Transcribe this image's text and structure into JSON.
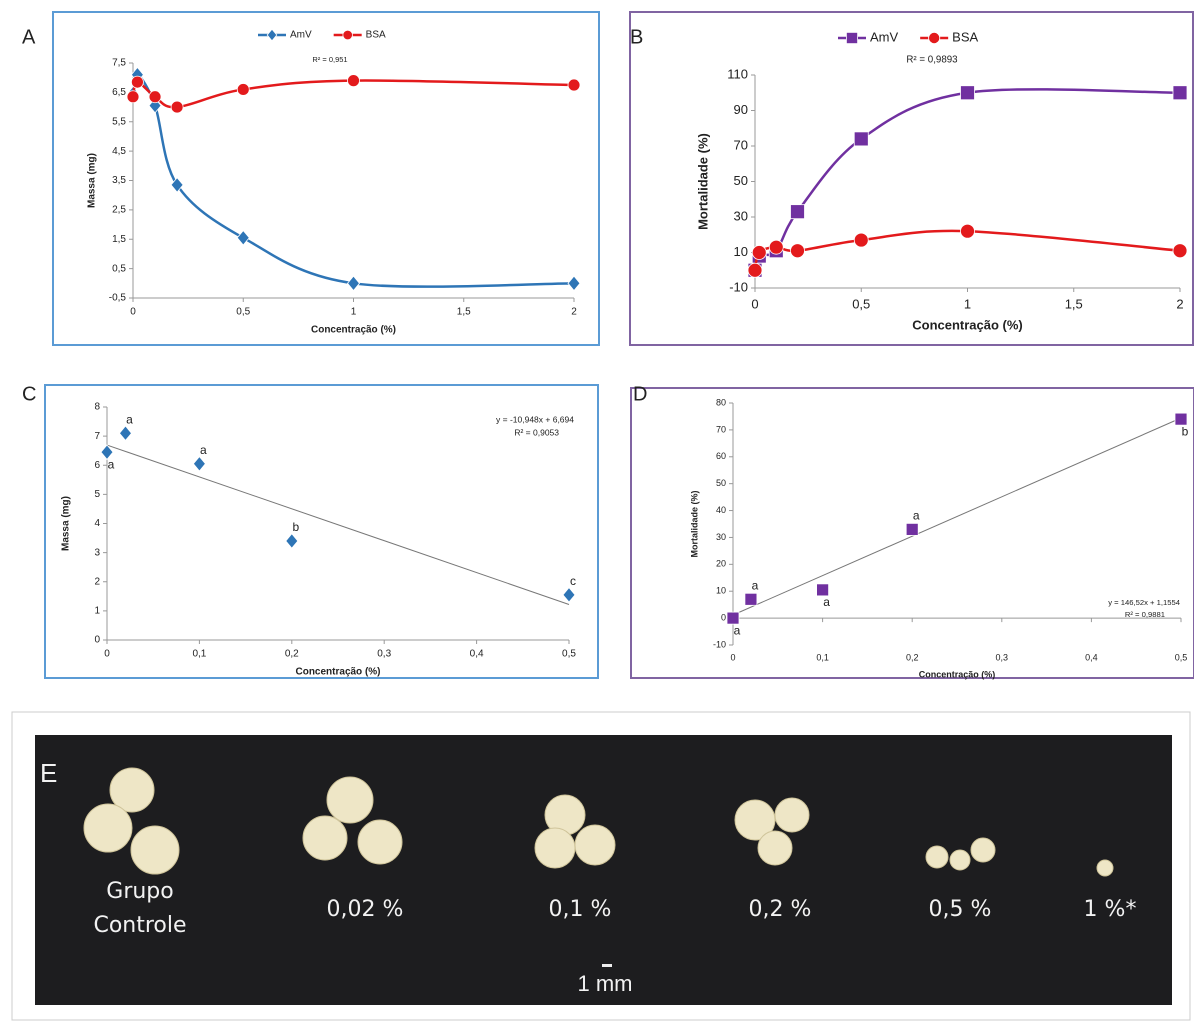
{
  "chart_data": [
    {
      "panel": "A",
      "type": "line",
      "smooth": true,
      "annotation": "R² = 0,951",
      "x_label": "Concentração (%)",
      "y_label": "Massa (mg)",
      "x": [
        0,
        0.02,
        0.1,
        0.2,
        0.5,
        1,
        2
      ],
      "series": [
        {
          "name": "AmV",
          "color": "#2e75b6",
          "marker": "diamond",
          "values": [
            6.45,
            7.1,
            6.05,
            3.35,
            1.55,
            0,
            0
          ]
        },
        {
          "name": "BSA",
          "color": "#e31a1c",
          "marker": "circle",
          "values": [
            6.35,
            6.85,
            6.35,
            6.0,
            6.6,
            6.9,
            6.75
          ]
        }
      ],
      "xlim": [
        0,
        2
      ],
      "xticks": [
        0,
        {
          "value": 0.5,
          "label": "0,5"
        },
        1,
        {
          "value": 1.5,
          "label": "1,5"
        },
        2
      ],
      "ylim": [
        -0.5,
        7.5
      ],
      "yticks": [
        {
          "value": -0.5,
          "label": "-0,5"
        },
        {
          "value": 0.5,
          "label": "0,5"
        },
        {
          "value": 1.5,
          "label": "1,5"
        },
        {
          "value": 2.5,
          "label": "2,5"
        },
        {
          "value": 3.5,
          "label": "3,5"
        },
        {
          "value": 4.5,
          "label": "4,5"
        },
        {
          "value": 5.5,
          "label": "5,5"
        },
        {
          "value": 6.5,
          "label": "6,5"
        },
        {
          "value": 7.5,
          "label": "7,5"
        }
      ],
      "legend": "top"
    },
    {
      "panel": "B",
      "type": "line",
      "smooth": true,
      "annotation": "R² = 0,9893",
      "x_label": "Concentração (%)",
      "y_label": "Mortalidade (%)",
      "x": [
        0,
        0.02,
        0.1,
        0.2,
        0.5,
        1,
        2
      ],
      "series": [
        {
          "name": "AmV",
          "color": "#7030a0",
          "marker": "square",
          "values": [
            0,
            8,
            11,
            33,
            74,
            100,
            100
          ]
        },
        {
          "name": "BSA",
          "color": "#e31a1c",
          "marker": "circle",
          "values": [
            0,
            10,
            13,
            11,
            17,
            22,
            11
          ]
        }
      ],
      "xlim": [
        0,
        2
      ],
      "xticks": [
        0,
        {
          "value": 0.5,
          "label": "0,5"
        },
        1,
        {
          "value": 1.5,
          "label": "1,5"
        },
        2
      ],
      "ylim": [
        -10,
        110
      ],
      "yticks": [
        -10,
        10,
        30,
        50,
        70,
        90,
        110
      ],
      "legend": "top"
    },
    {
      "panel": "C",
      "type": "scatter",
      "x_label": "Concentração (%)",
      "y_label": "Massa (mg)",
      "x": [
        0,
        0.02,
        0.1,
        0.2,
        0.5
      ],
      "values": [
        6.45,
        7.1,
        6.05,
        3.4,
        1.55
      ],
      "color": "#2e75b6",
      "marker": "diamond",
      "point_labels": [
        "a",
        "a",
        "a",
        "b",
        "c"
      ],
      "trendline": {
        "slope": -10.948,
        "intercept": 6.694,
        "equation": "y = -10,948x + 6,694",
        "r2": "R² = 0,9053"
      },
      "xlim": [
        0,
        0.5
      ],
      "xticks": [
        0,
        {
          "value": 0.1,
          "label": "0,1"
        },
        {
          "value": 0.2,
          "label": "0,2"
        },
        {
          "value": 0.3,
          "label": "0,3"
        },
        {
          "value": 0.4,
          "label": "0,4"
        },
        {
          "value": 0.5,
          "label": "0,5"
        }
      ],
      "ylim": [
        0,
        8
      ],
      "yticks": [
        0,
        1,
        2,
        3,
        4,
        5,
        6,
        7,
        8
      ]
    },
    {
      "panel": "D",
      "type": "scatter",
      "x_label": "Concentração (%)",
      "y_label": "Mortalidade (%)",
      "x": [
        0,
        0.02,
        0.1,
        0.2,
        0.5
      ],
      "values": [
        0,
        7,
        10.5,
        33,
        74
      ],
      "color": "#7030a0",
      "marker": "square",
      "point_labels": [
        "a",
        "a",
        "a",
        "a",
        "b"
      ],
      "trendline": {
        "slope": 146.52,
        "intercept": 1.1554,
        "equation": "y = 146,52x + 1,1554",
        "r2": "R² = 0,9881"
      },
      "xlim": [
        0,
        0.5
      ],
      "xticks": [
        0,
        {
          "value": 0.1,
          "label": "0,1"
        },
        {
          "value": 0.2,
          "label": "0,2"
        },
        {
          "value": 0.3,
          "label": "0,3"
        },
        {
          "value": 0.4,
          "label": "0,4"
        },
        {
          "value": 0.5,
          "label": "0,5"
        }
      ],
      "ylim": [
        -10,
        80
      ],
      "yticks": [
        -10,
        0,
        10,
        20,
        30,
        40,
        50,
        60,
        70,
        80
      ]
    }
  ],
  "photo": {
    "panel": "E",
    "labels": [
      "Grupo Controle",
      "0,02 %",
      "0,1 %",
      "0,2 %",
      "0,5 %",
      "1 %*"
    ],
    "scale": "1 mm"
  }
}
